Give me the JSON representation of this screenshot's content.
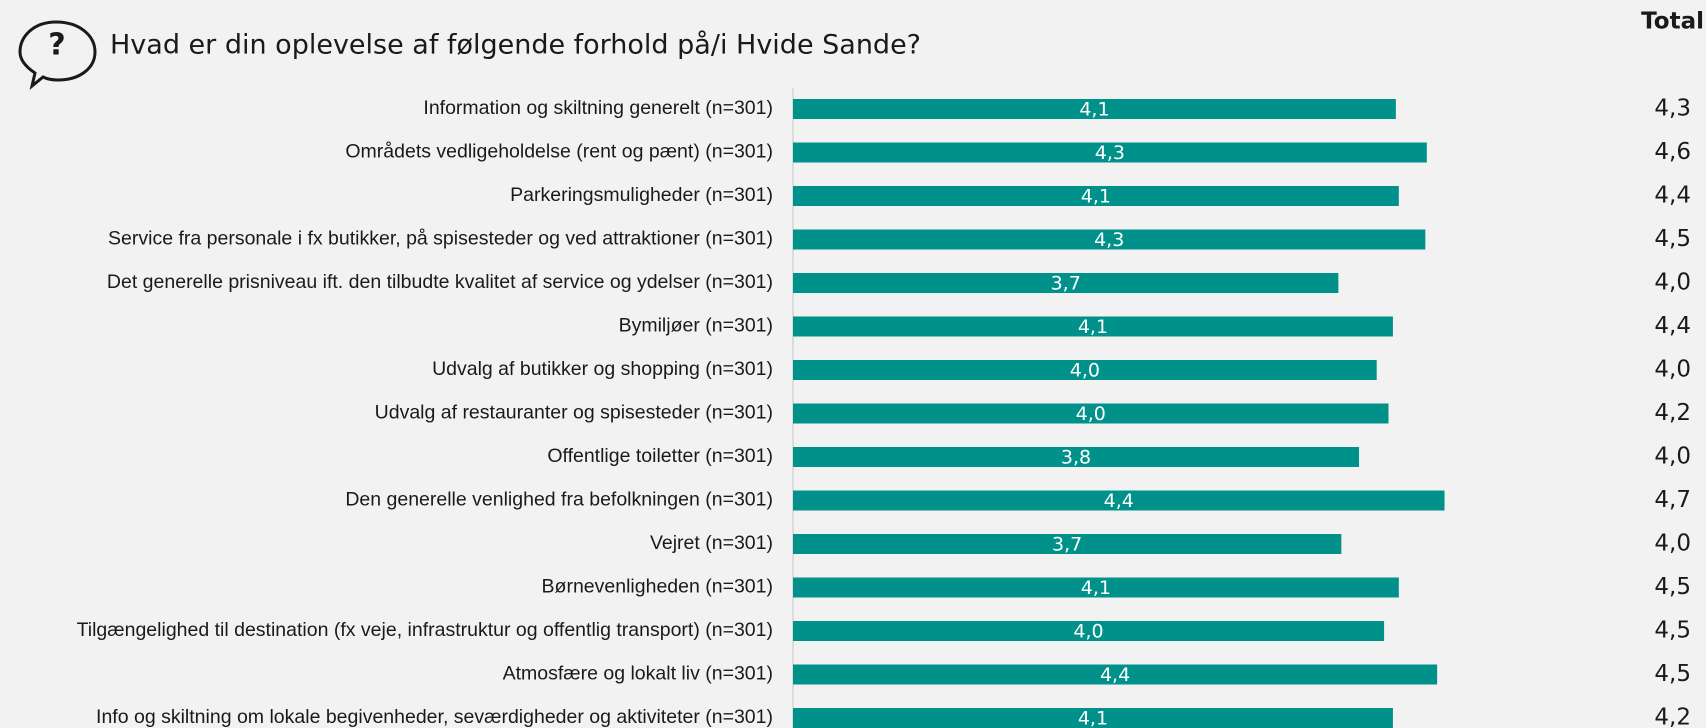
{
  "chart_data": {
    "type": "bar",
    "orientation": "horizontal",
    "title": "Hvad er din oplevelse af følgende forhold på/i Hvide Sande?",
    "total_header": "Total",
    "categories": [
      "Information og skiltning generelt (n=301)",
      "Områdets vedligeholdelse (rent og pænt) (n=301)",
      "Parkeringsmuligheder (n=301)",
      "Service fra personale i fx butikker, på spisesteder og ved attraktioner (n=301)",
      "Det generelle prisniveau ift. den tilbudte kvalitet af service og ydelser (n=301)",
      "Bymiljøer (n=301)",
      "Udvalg af butikker og shopping (n=301)",
      "Udvalg af restauranter og spisesteder (n=301)",
      "Offentlige toiletter (n=301)",
      "Den generelle venlighed fra befolkningen (n=301)",
      "Vejret (n=301)",
      "Børnevenligheden (n=301)",
      "Tilgængelighed til destination (fx veje, infrastruktur og offentlig transport) (n=301)",
      "Atmosfære og lokalt liv (n=301)",
      "Info og skiltning om lokale begivenheder, seværdigheder og aktiviteter (n=301)"
    ],
    "values": [
      4.09,
      4.3,
      4.11,
      4.29,
      3.7,
      4.07,
      3.96,
      4.04,
      3.84,
      4.42,
      3.72,
      4.11,
      4.01,
      4.37,
      4.07
    ],
    "value_labels": [
      "4,1",
      "4,3",
      "4,1",
      "4,3",
      "3,7",
      "4,1",
      "4,0",
      "4,0",
      "3,8",
      "4,4",
      "3,7",
      "4,1",
      "4,0",
      "4,4",
      "4,1"
    ],
    "totals": [
      4.3,
      4.6,
      4.4,
      4.5,
      4.0,
      4.4,
      4.0,
      4.2,
      4.0,
      4.7,
      4.0,
      4.5,
      4.5,
      4.5,
      4.2
    ],
    "total_labels": [
      "4,3",
      "4,6",
      "4,4",
      "4,5",
      "4,0",
      "4,4",
      "4,0",
      "4,2",
      "4,0",
      "4,7",
      "4,0",
      "4,5",
      "4,5",
      "4,5",
      "4,2"
    ],
    "color": "#00918a",
    "xlim": [
      0,
      5
    ]
  }
}
